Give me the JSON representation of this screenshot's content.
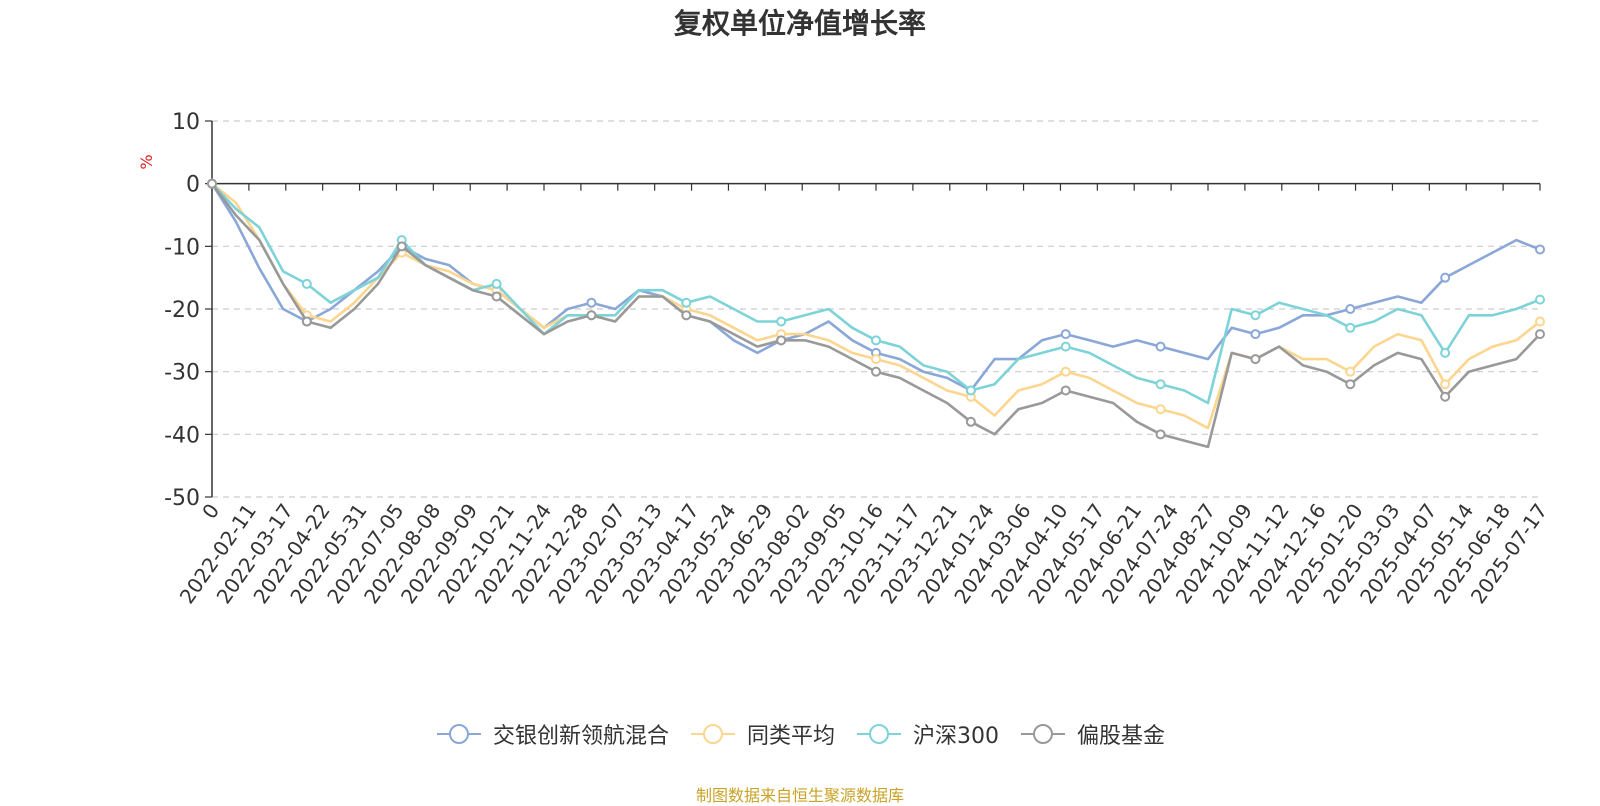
{
  "source_note": "制图数据来自恒生聚源数据库",
  "source_color": "#c9a227",
  "chart_data": {
    "type": "line",
    "title": "复权单位净值增长率",
    "ylabel": "%",
    "ylabel_color": "#e02020",
    "ylim": [
      -50,
      10
    ],
    "yticks": [
      -50,
      -40,
      -30,
      -20,
      -10,
      0,
      10
    ],
    "grid": true,
    "legend_position": "bottom-center",
    "xtick_labels": [
      "0",
      "2022-02-11",
      "2022-03-17",
      "2022-04-22",
      "2022-05-31",
      "2022-07-05",
      "2022-08-08",
      "2022-09-09",
      "2022-10-21",
      "2022-11-24",
      "2022-12-28",
      "2023-02-07",
      "2023-03-13",
      "2023-04-17",
      "2023-05-24",
      "2023-06-29",
      "2023-08-02",
      "2023-09-05",
      "2023-10-16",
      "2023-11-17",
      "2023-12-21",
      "2024-01-24",
      "2024-03-06",
      "2024-04-10",
      "2024-05-17",
      "2024-06-21",
      "2024-07-24",
      "2024-08-27",
      "2024-10-09",
      "2024-11-12",
      "2024-12-16",
      "2025-01-20",
      "2025-03-03",
      "2025-04-07",
      "2025-05-14",
      "2025-06-18",
      "2025-07-17"
    ],
    "series": [
      {
        "name": "交银创新领航混合",
        "color": "#8aa7d8",
        "values": [
          0,
          -6,
          -13.5,
          -20,
          -22,
          -20,
          -17,
          -14,
          -10,
          -12,
          -13,
          -16,
          -17,
          -20,
          -23,
          -20,
          -19,
          -20,
          -17,
          -18,
          -21,
          -22,
          -25,
          -27,
          -25,
          -24,
          -22,
          -25,
          -27,
          -28,
          -30,
          -31,
          -33,
          -28,
          -28,
          -25,
          -24,
          -25,
          -26,
          -25,
          -26,
          -27,
          -28,
          -23,
          -24,
          -23,
          -21,
          -21,
          -20,
          -19,
          -18,
          -19,
          -15,
          -13,
          -11,
          -9,
          -10.5
        ]
      },
      {
        "name": "同类平均",
        "color": "#fcd68e",
        "values": [
          0,
          -3,
          -9,
          -16,
          -21,
          -22,
          -19,
          -15,
          -11,
          -13,
          -14,
          -16,
          -17,
          -20,
          -23,
          -21,
          -21,
          -22,
          -18,
          -18,
          -20,
          -21,
          -23,
          -25,
          -24,
          -24,
          -25,
          -27,
          -28,
          -29,
          -31,
          -33,
          -34,
          -37,
          -33,
          -32,
          -30,
          -31,
          -33,
          -35,
          -36,
          -37,
          -39,
          -27,
          -28,
          -26,
          -28,
          -28,
          -30,
          -26,
          -24,
          -25,
          -32,
          -28,
          -26,
          -25,
          -22
        ]
      },
      {
        "name": "沪深300",
        "color": "#7dd3d8",
        "values": [
          0,
          -4,
          -7,
          -14,
          -16,
          -19,
          -17,
          -15,
          -9,
          -13,
          -15,
          -17,
          -16,
          -20,
          -24,
          -21,
          -21,
          -21,
          -17,
          -17,
          -19,
          -18,
          -20,
          -22,
          -22,
          -21,
          -20,
          -23,
          -25,
          -26,
          -29,
          -30,
          -33,
          -32,
          -28,
          -27,
          -26,
          -27,
          -29,
          -31,
          -32,
          -33,
          -35,
          -20,
          -21,
          -19,
          -20,
          -21,
          -23,
          -22,
          -20,
          -21,
          -27,
          -21,
          -21,
          -20,
          -18.5
        ]
      },
      {
        "name": "偏股基金",
        "color": "#999999",
        "values": [
          0,
          -5,
          -9,
          -16,
          -22,
          -23,
          -20,
          -16,
          -10,
          -13,
          -15,
          -17,
          -18,
          -21,
          -24,
          -22,
          -21,
          -22,
          -18,
          -18,
          -21,
          -22,
          -24,
          -26,
          -25,
          -25,
          -26,
          -28,
          -30,
          -31,
          -33,
          -35,
          -38,
          -40,
          -36,
          -35,
          -33,
          -34,
          -35,
          -38,
          -40,
          -41,
          -42,
          -27,
          -28,
          -26,
          -29,
          -30,
          -32,
          -29,
          -27,
          -28,
          -34,
          -30,
          -29,
          -28,
          -24
        ]
      }
    ]
  }
}
